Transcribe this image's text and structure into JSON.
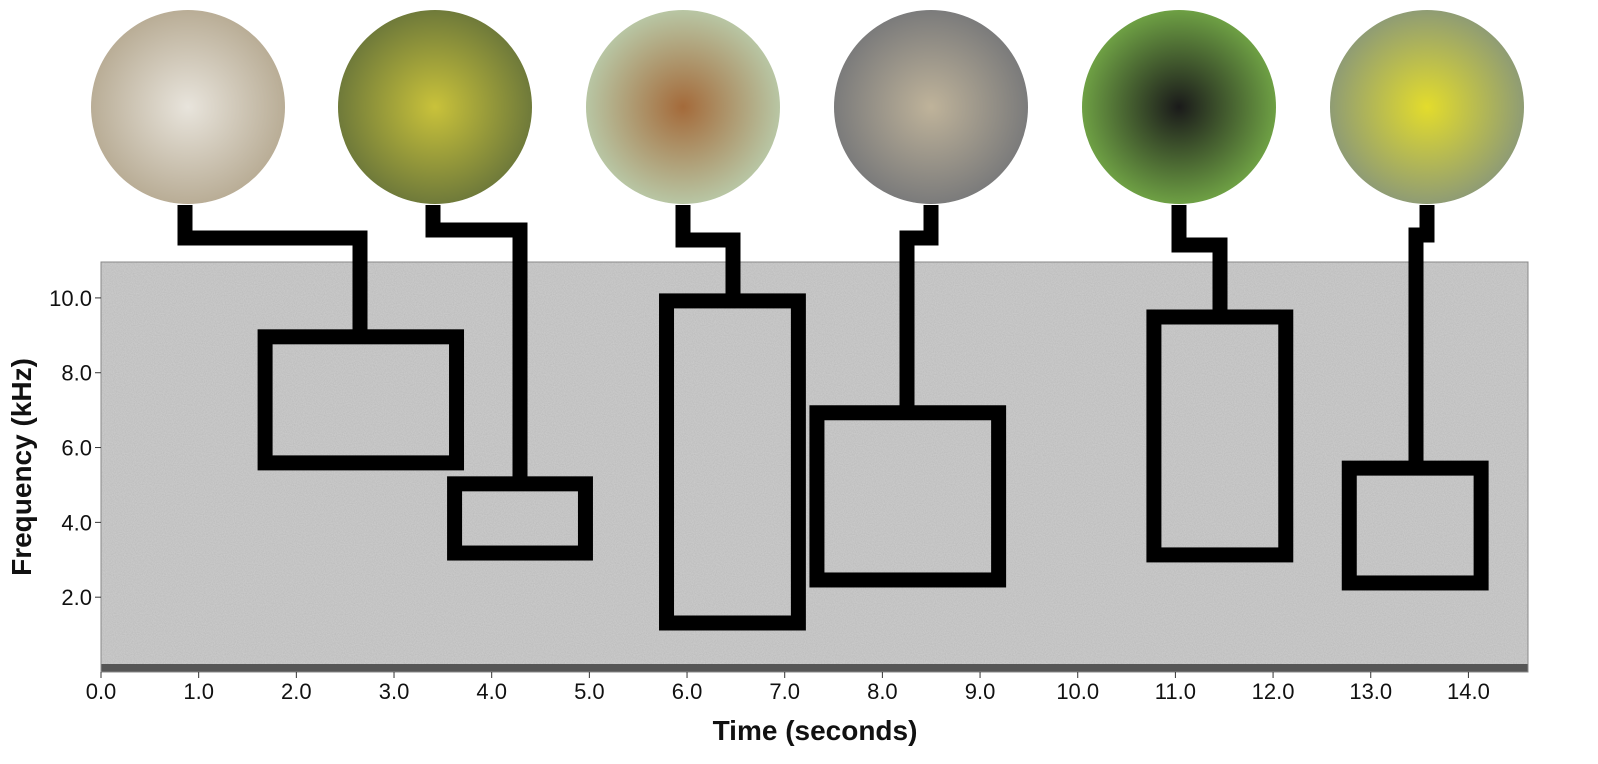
{
  "chart_data": {
    "type": "spectrogram",
    "xlabel": "Time (seconds)",
    "ylabel": "Frequency (kHz)",
    "xlim": [
      0,
      14.61
    ],
    "ylim": [
      0,
      10.96
    ],
    "xticks": [
      {
        "value": 0,
        "label": "0.0"
      },
      {
        "value": 1,
        "label": "1.0"
      },
      {
        "value": 2,
        "label": "2.0"
      },
      {
        "value": 3,
        "label": "3.0"
      },
      {
        "value": 4,
        "label": "4.0"
      },
      {
        "value": 5,
        "label": "5.0"
      },
      {
        "value": 6,
        "label": "6.0"
      },
      {
        "value": 7,
        "label": "7.0"
      },
      {
        "value": 8,
        "label": "8.0"
      },
      {
        "value": 9,
        "label": "9.0"
      },
      {
        "value": 10,
        "label": "10.0"
      },
      {
        "value": 11,
        "label": "11.0"
      },
      {
        "value": 12,
        "label": "12.0"
      },
      {
        "value": 13,
        "label": "13.0"
      },
      {
        "value": 14,
        "label": "14.0"
      }
    ],
    "yticks": [
      {
        "value": 2,
        "label": "2.0"
      },
      {
        "value": 4,
        "label": "4.0"
      },
      {
        "value": 6,
        "label": "6.0"
      },
      {
        "value": 8,
        "label": "8.0"
      },
      {
        "value": 10,
        "label": "10.0"
      }
    ],
    "boxes": [
      {
        "x": [
          1.68,
          3.64
        ],
        "y": [
          5.59,
          8.96
        ]
      },
      {
        "x": [
          3.62,
          4.96
        ],
        "y": [
          3.18,
          5.03
        ]
      },
      {
        "x": [
          5.79,
          7.14
        ],
        "y": [
          1.31,
          9.92
        ]
      },
      {
        "x": [
          7.33,
          9.19
        ],
        "y": [
          2.46,
          6.93
        ]
      },
      {
        "x": [
          10.78,
          12.13
        ],
        "y": [
          3.13,
          9.49
        ]
      },
      {
        "x": [
          12.78,
          14.13
        ],
        "y": [
          2.38,
          5.45
        ]
      }
    ],
    "box_color": "#000000"
  }
}
